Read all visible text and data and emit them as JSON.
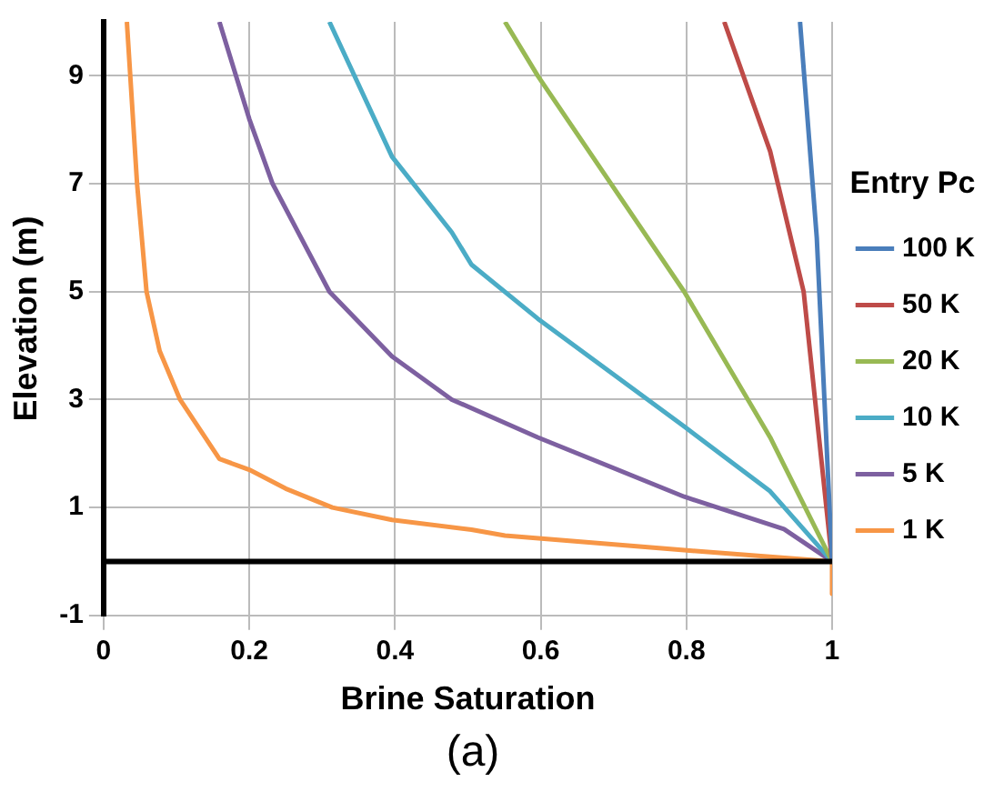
{
  "chart_data": {
    "type": "line",
    "xlabel": "Brine Saturation",
    "ylabel": "Elevation (m)",
    "legend_title": "Entry Pc",
    "legend": "right",
    "grid": true,
    "marker": "none",
    "line_style": "solid",
    "xlim": [
      0,
      1
    ],
    "xticks": [
      0,
      0.2,
      0.4,
      0.6,
      0.8,
      1
    ],
    "ylim": [
      -1,
      10
    ],
    "yticks": [
      -1,
      1,
      3,
      5,
      7,
      9
    ],
    "ref_lines": [
      {
        "axis": "y",
        "value": 0,
        "color": "#000000"
      }
    ],
    "annotations": [
      "(a)"
    ],
    "series": [
      {
        "name": "100 K",
        "color": "#4a7ebb",
        "x": [
          0.956,
          0.979,
          1
        ],
        "values": [
          10,
          6,
          0
        ]
      },
      {
        "name": "50 K",
        "color": "#be4b48",
        "x": [
          0.852,
          0.915,
          0.961,
          1
        ],
        "values": [
          10,
          7.6,
          5,
          0
        ]
      },
      {
        "name": "20 K",
        "color": "#98b954",
        "x": [
          0.551,
          0.596,
          0.797,
          0.915,
          1
        ],
        "values": [
          10,
          9,
          5,
          2.3,
          0
        ]
      },
      {
        "name": "10 K",
        "color": "#4bacc6",
        "x": [
          0.31,
          0.396,
          0.478,
          0.505,
          0.596,
          0.797,
          0.915,
          1
        ],
        "values": [
          10,
          7.5,
          6.1,
          5.5,
          4.5,
          2.5,
          1.3,
          0
        ]
      },
      {
        "name": "5 K",
        "color": "#7d60a0",
        "x": [
          0.159,
          0.2,
          0.232,
          0.31,
          0.396,
          0.478,
          0.596,
          0.797,
          0.934,
          1
        ],
        "values": [
          10,
          8.2,
          7,
          5,
          3.8,
          3,
          2.3,
          1.2,
          0.6,
          0
        ]
      },
      {
        "name": "1 K",
        "color": "#f79646",
        "x": [
          0.032,
          0.046,
          0.059,
          0.077,
          0.105,
          0.159,
          0.2,
          0.25,
          0.314,
          0.396,
          0.505,
          0.551,
          0.797,
          1,
          1
        ],
        "values": [
          10,
          7,
          5,
          3.9,
          3,
          1.9,
          1.7,
          1.35,
          1,
          0.77,
          0.59,
          0.48,
          0.21,
          0,
          -0.6
        ]
      }
    ]
  }
}
